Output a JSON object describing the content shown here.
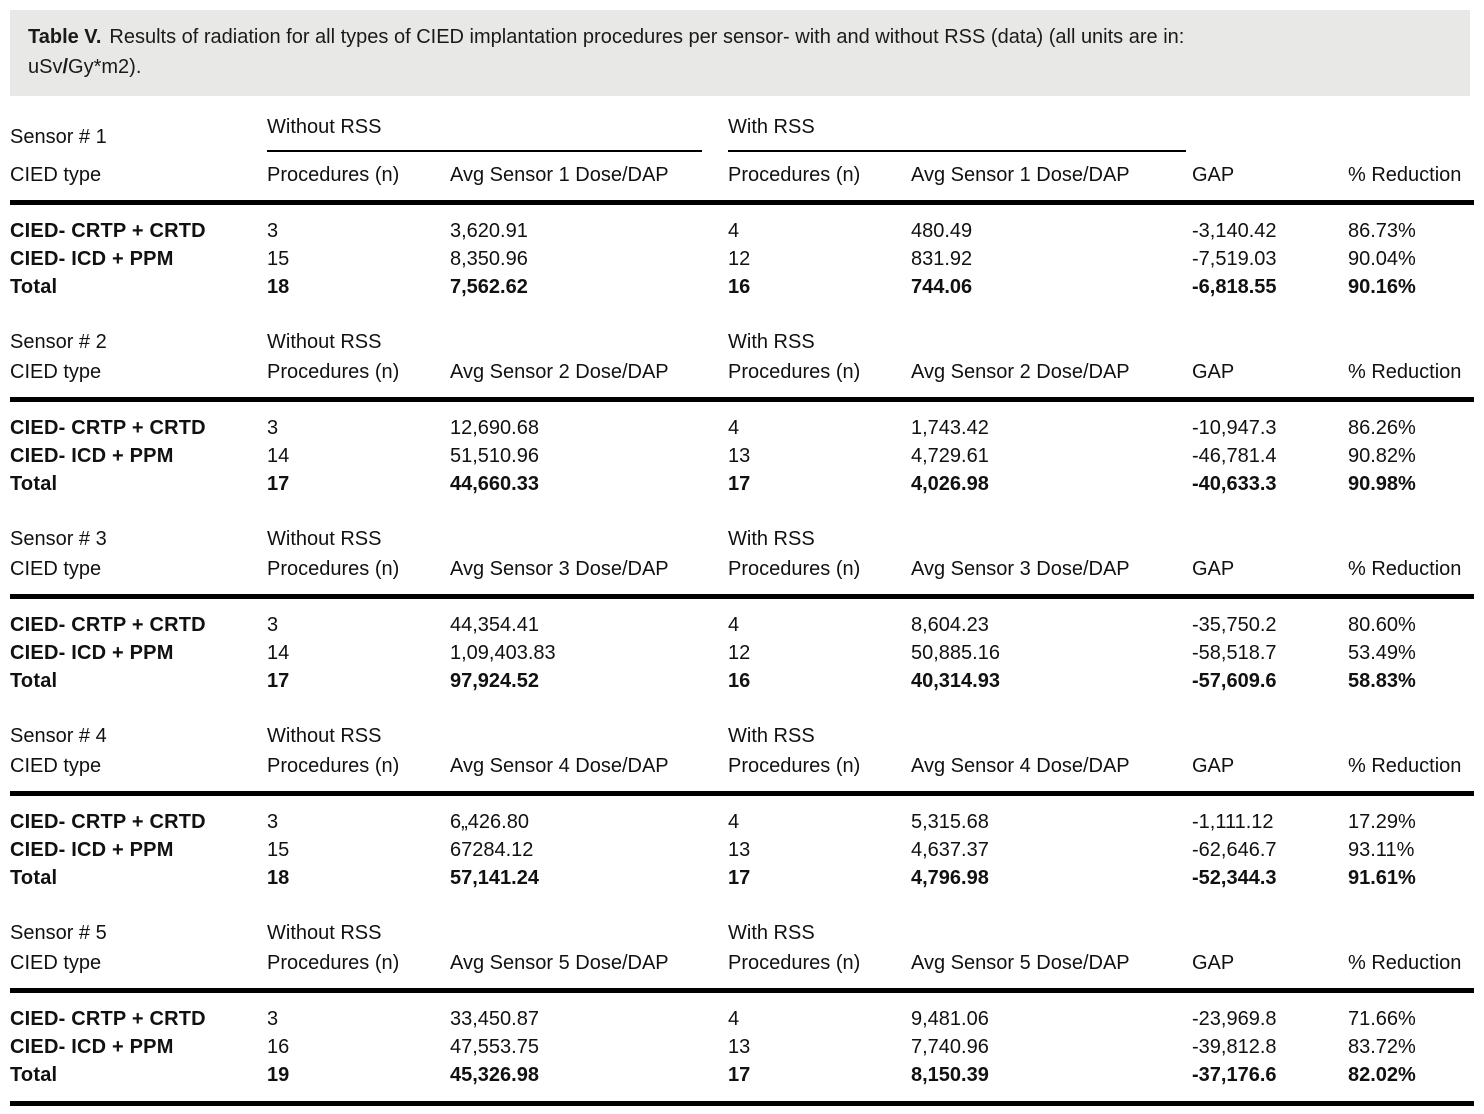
{
  "colors": {
    "caption_background": "#e8e8e7",
    "text": "#111111",
    "rule": "#000000"
  },
  "caption": {
    "label": "Table V.",
    "body": "Results of radiation for all types of CIED implantation procedures per sensor- with and without RSS (data) (all units are in:",
    "unit_pre": "uSv",
    "unit_slash": "/",
    "unit_post": "Gy*m2)."
  },
  "labels": {
    "without": "Without RSS",
    "with": "With RSS",
    "cied_type": "CIED type",
    "procedures": "Procedures (n)",
    "gap": "GAP",
    "reduction": "% Reduction"
  },
  "sections": [
    {
      "sensor_label": "Sensor # 1",
      "avg_label": "Avg Sensor 1 Dose/DAP",
      "rows": [
        {
          "label": "CIED- CRTP + CRTD",
          "wo_n": "3",
          "wo_dose": "3,620.91",
          "w_n": "4",
          "w_dose": "480.49",
          "gap": "-3,140.42",
          "reduction": "86.73%"
        },
        {
          "label": "CIED- ICD + PPM",
          "wo_n": "15",
          "wo_dose": "8,350.96",
          "w_n": "12",
          "w_dose": "831.92",
          "gap": "-7,519.03",
          "reduction": "90.04%"
        },
        {
          "label": "Total",
          "wo_n": "18",
          "wo_dose": "7,562.62",
          "w_n": "16",
          "w_dose": "744.06",
          "gap": "-6,818.55",
          "reduction": "90.16%"
        }
      ]
    },
    {
      "sensor_label": "Sensor # 2",
      "avg_label": "Avg Sensor 2 Dose/DAP",
      "rows": [
        {
          "label": "CIED- CRTP + CRTD",
          "wo_n": "3",
          "wo_dose": "12,690.68",
          "w_n": "4",
          "w_dose": "1,743.42",
          "gap": "-10,947.3",
          "reduction": "86.26%"
        },
        {
          "label": "CIED- ICD + PPM",
          "wo_n": "14",
          "wo_dose": "51,510.96",
          "w_n": "13",
          "w_dose": "4,729.61",
          "gap": "-46,781.4",
          "reduction": "90.82%"
        },
        {
          "label": "Total",
          "wo_n": "17",
          "wo_dose": "44,660.33",
          "w_n": "17",
          "w_dose": "4,026.98",
          "gap": "-40,633.3",
          "reduction": "90.98%"
        }
      ]
    },
    {
      "sensor_label": "Sensor # 3",
      "avg_label": "Avg Sensor 3 Dose/DAP",
      "rows": [
        {
          "label": "CIED- CRTP + CRTD",
          "wo_n": "3",
          "wo_dose": "44,354.41",
          "w_n": "4",
          "w_dose": "8,604.23",
          "gap": "-35,750.2",
          "reduction": "80.60%"
        },
        {
          "label": "CIED- ICD + PPM",
          "wo_n": "14",
          "wo_dose": "1,09,403.83",
          "w_n": "12",
          "w_dose": "50,885.16",
          "gap": "-58,518.7",
          "reduction": "53.49%"
        },
        {
          "label": "Total",
          "wo_n": "17",
          "wo_dose": "97,924.52",
          "w_n": "16",
          "w_dose": "40,314.93",
          "gap": "-57,609.6",
          "reduction": "58.83%"
        }
      ]
    },
    {
      "sensor_label": "Sensor # 4",
      "avg_label": "Avg Sensor 4 Dose/DAP",
      "rows": [
        {
          "label": "CIED- CRTP + CRTD",
          "wo_n": "3",
          "wo_dose": "6„426.80",
          "w_n": "4",
          "w_dose": "5,315.68",
          "gap": "-1,111.12",
          "reduction": "17.29%"
        },
        {
          "label": "CIED- ICD + PPM",
          "wo_n": "15",
          "wo_dose": "67284.12",
          "w_n": "13",
          "w_dose": "4,637.37",
          "gap": "-62,646.7",
          "reduction": "93.11%"
        },
        {
          "label": "Total",
          "wo_n": "18",
          "wo_dose": "57,141.24",
          "w_n": "17",
          "w_dose": "4,796.98",
          "gap": "-52,344.3",
          "reduction": "91.61%"
        }
      ]
    },
    {
      "sensor_label": "Sensor # 5",
      "avg_label": "Avg Sensor 5 Dose/DAP",
      "rows": [
        {
          "label": "CIED- CRTP + CRTD",
          "wo_n": "3",
          "wo_dose": "33,450.87",
          "w_n": "4",
          "w_dose": "9,481.06",
          "gap": "-23,969.8",
          "reduction": "71.66%"
        },
        {
          "label": "CIED- ICD + PPM",
          "wo_n": "16",
          "wo_dose": "47,553.75",
          "w_n": "13",
          "w_dose": "7,740.96",
          "gap": "-39,812.8",
          "reduction": "83.72%"
        },
        {
          "label": "Total",
          "wo_n": "19",
          "wo_dose": "45,326.98",
          "w_n": "17",
          "w_dose": "8,150.39",
          "gap": "-37,176.6",
          "reduction": "82.02%"
        }
      ]
    }
  ]
}
